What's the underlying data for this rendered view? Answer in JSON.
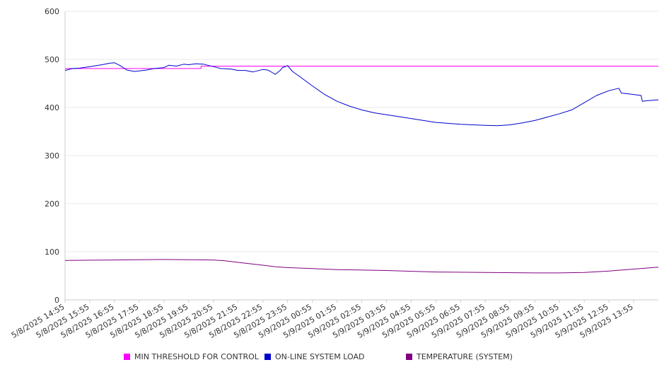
{
  "chart_data": {
    "type": "line",
    "ylim": [
      0,
      600
    ],
    "yticks": [
      0,
      100,
      200,
      300,
      400,
      500,
      600
    ],
    "x_tick_labels": [
      "5/8/2025 14:55",
      "5/8/2025 15:55",
      "5/8/2025 16:55",
      "5/8/2025 17:55",
      "5/8/2025 18:55",
      "5/8/2025 19:55",
      "5/8/2025 20:55",
      "5/8/2025 21:55",
      "5/8/2025 22:55",
      "5/8/2025 23:55",
      "5/9/2025 00:55",
      "5/9/2025 01:55",
      "5/9/2025 02:55",
      "5/9/2025 03:55",
      "5/9/2025 04:55",
      "5/9/2025 05:55",
      "5/9/2025 06:55",
      "5/9/2025 07:55",
      "5/9/2025 08:55",
      "5/9/2025 09:55",
      "5/9/2025 10:55",
      "5/9/2025 11:55",
      "5/9/2025 12:55",
      "5/9/2025 13:55"
    ],
    "grid": true,
    "legend_position": "bottom",
    "series": [
      {
        "name": "MIN THRESHOLD FOR CONTROL",
        "color": "#ff00ff",
        "points": [
          [
            0,
            481
          ],
          [
            5.5,
            481
          ],
          [
            5.5,
            486
          ],
          [
            24,
            486
          ]
        ]
      },
      {
        "name": "ON-LINE SYSTEM LOAD",
        "color": "#0000cc",
        "points": [
          [
            0,
            477
          ],
          [
            0.3,
            481
          ],
          [
            0.6,
            482
          ],
          [
            1,
            485
          ],
          [
            1.5,
            489
          ],
          [
            1.8,
            492
          ],
          [
            2,
            493
          ],
          [
            2.2,
            488
          ],
          [
            2.5,
            478
          ],
          [
            2.8,
            475
          ],
          [
            3,
            476
          ],
          [
            3.3,
            478
          ],
          [
            3.6,
            481
          ],
          [
            4,
            483
          ],
          [
            4.2,
            488
          ],
          [
            4.5,
            486
          ],
          [
            4.8,
            490
          ],
          [
            5,
            489
          ],
          [
            5.3,
            491
          ],
          [
            5.6,
            490
          ],
          [
            6,
            485
          ],
          [
            6.3,
            481
          ],
          [
            6.7,
            480
          ],
          [
            7,
            477
          ],
          [
            7.3,
            477
          ],
          [
            7.6,
            474
          ],
          [
            8,
            479
          ],
          [
            8.2,
            478
          ],
          [
            8.4,
            472
          ],
          [
            8.5,
            469
          ],
          [
            8.7,
            477
          ],
          [
            8.8,
            483
          ],
          [
            9.0,
            487
          ],
          [
            9.2,
            475
          ],
          [
            9.5,
            464
          ],
          [
            10,
            445
          ],
          [
            10.5,
            427
          ],
          [
            11,
            413
          ],
          [
            11.5,
            403
          ],
          [
            12,
            395
          ],
          [
            12.5,
            389
          ],
          [
            13,
            385
          ],
          [
            13.5,
            381
          ],
          [
            14,
            377
          ],
          [
            14.5,
            373
          ],
          [
            15,
            369
          ],
          [
            15.5,
            367
          ],
          [
            16,
            365
          ],
          [
            16.5,
            364
          ],
          [
            17,
            363
          ],
          [
            17.5,
            362
          ],
          [
            18,
            364
          ],
          [
            18.5,
            368
          ],
          [
            19,
            373
          ],
          [
            19.5,
            380
          ],
          [
            20,
            387
          ],
          [
            20.5,
            395
          ],
          [
            21,
            410
          ],
          [
            21.5,
            425
          ],
          [
            22,
            435
          ],
          [
            22.4,
            440
          ],
          [
            22.5,
            430
          ],
          [
            23,
            427
          ],
          [
            23.3,
            425
          ],
          [
            23.35,
            413
          ],
          [
            23.5,
            414
          ],
          [
            24,
            416
          ]
        ]
      },
      {
        "name": "TEMPERATURE (SYSTEM)",
        "color": "#800080",
        "points": [
          [
            0,
            82
          ],
          [
            2,
            83
          ],
          [
            4,
            84
          ],
          [
            6,
            83
          ],
          [
            6.5,
            81
          ],
          [
            7,
            78
          ],
          [
            8,
            72
          ],
          [
            8.5,
            69
          ],
          [
            9,
            67
          ],
          [
            10,
            65
          ],
          [
            11,
            63
          ],
          [
            13,
            61
          ],
          [
            15,
            58
          ],
          [
            17,
            57
          ],
          [
            19,
            56
          ],
          [
            20,
            56
          ],
          [
            21,
            57
          ],
          [
            22,
            60
          ],
          [
            23,
            64
          ],
          [
            24,
            68
          ]
        ]
      }
    ]
  },
  "legend": [
    {
      "label": "MIN THRESHOLD FOR CONTROL",
      "color": "#ff00ff"
    },
    {
      "label": "ON-LINE SYSTEM LOAD",
      "color": "#0000cc"
    },
    {
      "label": "TEMPERATURE (SYSTEM)",
      "color": "#800080"
    }
  ]
}
